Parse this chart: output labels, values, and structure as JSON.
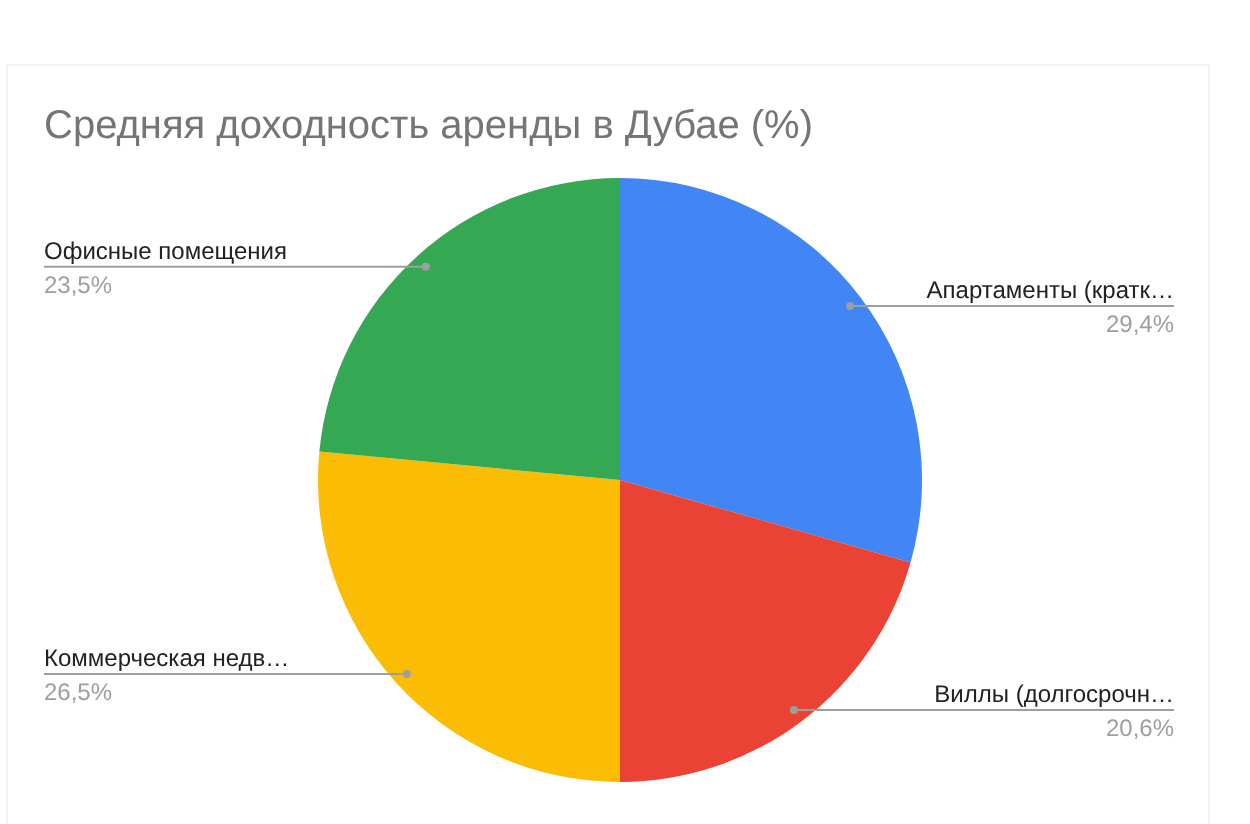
{
  "chart_data": {
    "type": "pie",
    "title": "Средняя доходность аренды в Дубае (%)",
    "categories": [
      "Апартаменты (кратк…",
      "Виллы (долгосрочн…",
      "Коммерческая недв…",
      "Офисные помещения"
    ],
    "values": [
      29.4,
      20.6,
      26.5,
      23.5
    ],
    "colors": [
      "#4285f4",
      "#ea4335",
      "#fbbc04",
      "#34a853"
    ],
    "value_labels": [
      "29,4%",
      "20,6%",
      "26,5%",
      "23,5%"
    ]
  }
}
